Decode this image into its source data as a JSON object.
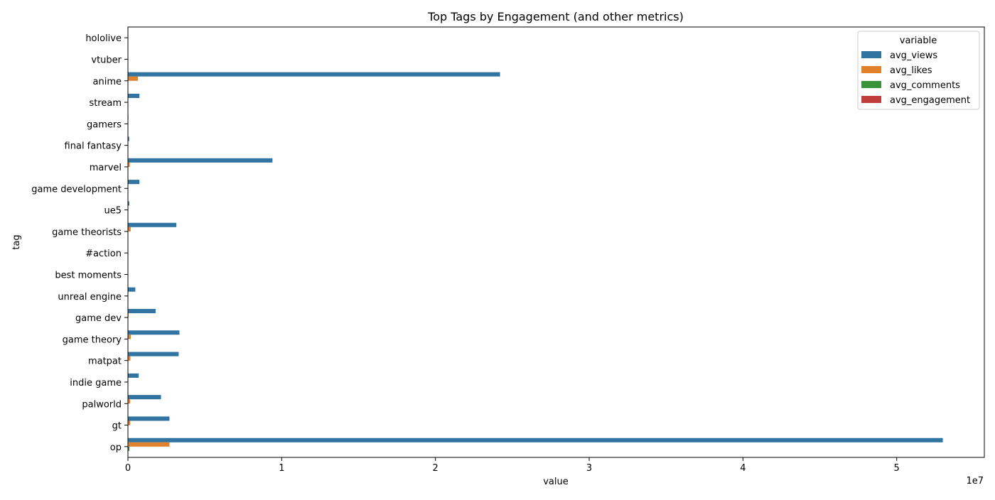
{
  "chart_data": {
    "type": "bar",
    "orientation": "horizontal",
    "title": "Top Tags by Engagement (and other metrics)",
    "xlabel": "value",
    "ylabel": "tag",
    "x_scale_label": "1e7",
    "xlim": [
      0,
      55700000
    ],
    "x_ticks": [
      {
        "value": 0,
        "label": "0"
      },
      {
        "value": 10000000,
        "label": "1"
      },
      {
        "value": 20000000,
        "label": "2"
      },
      {
        "value": 30000000,
        "label": "3"
      },
      {
        "value": 40000000,
        "label": "4"
      },
      {
        "value": 50000000,
        "label": "5"
      }
    ],
    "categories": [
      "hololive",
      "vtuber",
      "anime",
      "stream",
      "gamers",
      "final fantasy",
      "marvel",
      "game development",
      "ue5",
      "game theorists",
      "#action",
      "best moments",
      "unreal engine",
      "game dev",
      "game theory",
      "matpat",
      "indie game",
      "palworld",
      "gt",
      "op"
    ],
    "legend_title": "variable",
    "legend_position": "top-right",
    "series": [
      {
        "name": "avg_views",
        "color": "#3274a1",
        "values": [
          20000,
          15000,
          24200000,
          750000,
          30000,
          80000,
          9400000,
          750000,
          90000,
          3150000,
          10000,
          15000,
          480000,
          1800000,
          3350000,
          3300000,
          700000,
          2150000,
          2700000,
          53000000
        ]
      },
      {
        "name": "avg_likes",
        "color": "#e1812c",
        "values": [
          1000,
          800,
          650000,
          20000,
          1000,
          3000,
          120000,
          15000,
          2000,
          180000,
          500,
          500,
          10000,
          40000,
          190000,
          160000,
          15000,
          140000,
          150000,
          2700000
        ]
      },
      {
        "name": "avg_comments",
        "color": "#3a923a",
        "values": [
          100,
          100,
          20000,
          1000,
          100,
          300,
          5000,
          800,
          200,
          8000,
          50,
          50,
          500,
          2000,
          8000,
          7000,
          800,
          6000,
          6000,
          100000
        ]
      },
      {
        "name": "avg_engagement",
        "color": "#c03d3e",
        "values": [
          0.05,
          0.05,
          0.03,
          0.03,
          0.04,
          0.04,
          0.02,
          0.03,
          0.03,
          0.06,
          0.05,
          0.04,
          0.03,
          0.03,
          0.06,
          0.05,
          0.03,
          0.07,
          0.06,
          0.05
        ]
      }
    ]
  }
}
